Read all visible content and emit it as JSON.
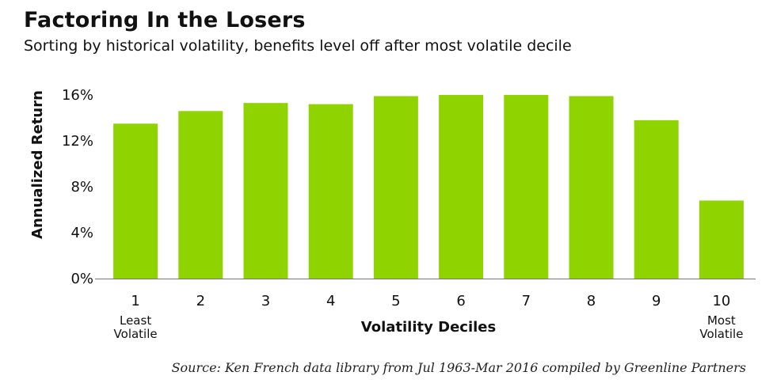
{
  "chart_data": {
    "type": "bar",
    "title": "Factoring In the Losers",
    "subtitle": "Sorting by historical volatility, benefits level off after most volatile decile",
    "xlabel": "Volatility Deciles",
    "ylabel": "Annualized Return",
    "categories": [
      "1",
      "2",
      "3",
      "4",
      "5",
      "6",
      "7",
      "8",
      "9",
      "10"
    ],
    "values": [
      13.5,
      14.6,
      15.3,
      15.2,
      15.9,
      16.0,
      16.0,
      15.9,
      13.8,
      6.8
    ],
    "ylim": [
      0,
      16
    ],
    "yticks": [
      0,
      4,
      8,
      12,
      16
    ],
    "ytick_labels": [
      "0%",
      "4%",
      "8%",
      "12%",
      "16%"
    ],
    "grid": false,
    "bar_color": "#8fd400",
    "annotations": {
      "least": [
        "Least",
        "Volatile"
      ],
      "most": [
        "Most",
        "Volatile"
      ]
    },
    "source": "Source: Ken French data library from Jul 1963-Mar 2016 compiled by Greenline Partners"
  }
}
